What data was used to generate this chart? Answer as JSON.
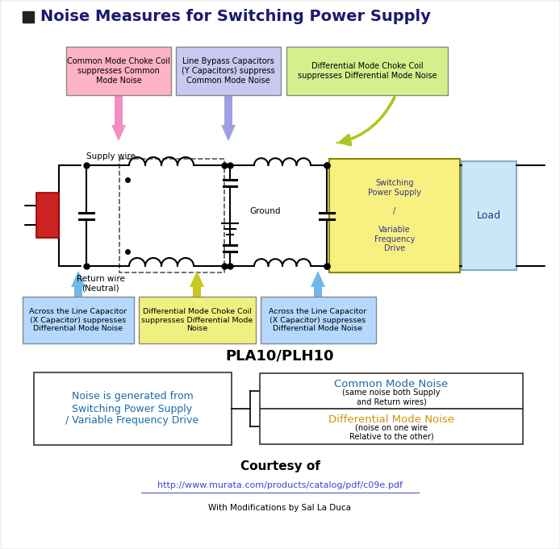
{
  "title": "Noise Measures for Switching Power Supply",
  "title_square_color": "#222222",
  "bg_color": "#f0f0f0",
  "diagram_bg": "#ffffff",
  "label_pla10": "PLA10/PLH10",
  "courtesy_title": "Courtesy of",
  "courtesy_url": "http://www.murata.com/products/catalog/pdf/c09e.pdf",
  "courtesy_sub": "With Modifications by Sal La Duca",
  "supply_wire_label": "Supply wire",
  "return_wire_label": "Return wire\n(Neutral)",
  "ground_label": "Ground",
  "switching_box_text": "Switching\nPower Supply\n\n/\n\nVariable\nFrequency\nDrive",
  "load_label": "Load",
  "noise_box_text": "Noise is generated from\nSwitching Power Supply\n/ Variable Frequency Drive",
  "common_mode_noise_title": "Common Mode Noise",
  "common_mode_noise_sub": "(same noise both Supply\nand Return wires)",
  "diff_mode_noise_title": "Differential Mode Noise",
  "diff_mode_noise_sub": "(noise on one wire\nRelative to the other)",
  "noise_title_color": "#1a6aa8",
  "diff_noise_title_color": "#c8960c",
  "box_colors": {
    "common_mode_choke_top": "#ffb3c6",
    "line_bypass_cap": "#c8c8f0",
    "diff_mode_choke_top": "#d4f08c",
    "x_cap_left": "#b3d9ff",
    "diff_mode_choke_bottom": "#f0f080",
    "x_cap_right": "#b3d9ff"
  },
  "arrow_colors": {
    "pink": "#f090c0",
    "lavender": "#a0a0e0",
    "green": "#a8c820",
    "blue": "#70b8e8",
    "yellow": "#c8c820"
  }
}
